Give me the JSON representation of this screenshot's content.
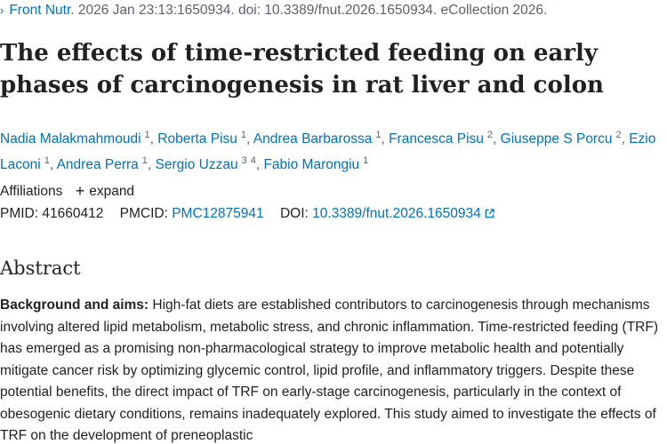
{
  "citation": {
    "chevron": "›",
    "journal": "Front Nutr.",
    "details": "2026 Jan 23:13:1650934. doi: 10.3389/fnut.2026.1650934. eCollection 2026."
  },
  "title": "The effects of time-restricted feeding on early phases of carcinogenesis in rat liver and colon",
  "authors": [
    {
      "name": "Nadia Malakmahmoudi",
      "affs": [
        "1"
      ]
    },
    {
      "name": "Roberta Pisu",
      "affs": [
        "1"
      ]
    },
    {
      "name": "Andrea Barbarossa",
      "affs": [
        "1"
      ]
    },
    {
      "name": "Francesca Pisu",
      "affs": [
        "2"
      ]
    },
    {
      "name": "Giuseppe S Porcu",
      "affs": [
        "2"
      ]
    },
    {
      "name": "Ezio Laconi",
      "affs": [
        "1"
      ]
    },
    {
      "name": "Andrea Perra",
      "affs": [
        "1"
      ]
    },
    {
      "name": "Sergio Uzzau",
      "affs": [
        "3",
        "4"
      ]
    },
    {
      "name": "Fabio Marongiu",
      "affs": [
        "1"
      ]
    }
  ],
  "affiliations": {
    "label": "Affiliations",
    "expand_icon": "+",
    "expand_label": "expand"
  },
  "identifiers": {
    "pmid_label": "PMID:",
    "pmid": "41660412",
    "pmcid_label": "PMCID:",
    "pmcid": "PMC12875941",
    "doi_label": "DOI:",
    "doi": "10.3389/fnut.2026.1650934"
  },
  "abstract": {
    "heading": "Abstract",
    "label": "Background and aims:",
    "text": " High-fat diets are established contributors to carcinogenesis through mechanisms involving altered lipid metabolism, metabolic stress, and chronic inflammation. Time-restricted feeding (TRF) has emerged as a promising non-pharmacological strategy to improve metabolic health and potentially mitigate cancer risk by optimizing glycemic control, lipid profile, and inflammatory triggers. Despite these potential benefits, the direct impact of TRF on early-stage carcinogenesis, particularly in the context of obesogenic dietary conditions, remains inadequately explored. This study aimed to investigate the effects of TRF on the development of preneoplastic"
  },
  "colors": {
    "link": "#0071bc",
    "text": "#212121",
    "muted": "#5b616b"
  }
}
